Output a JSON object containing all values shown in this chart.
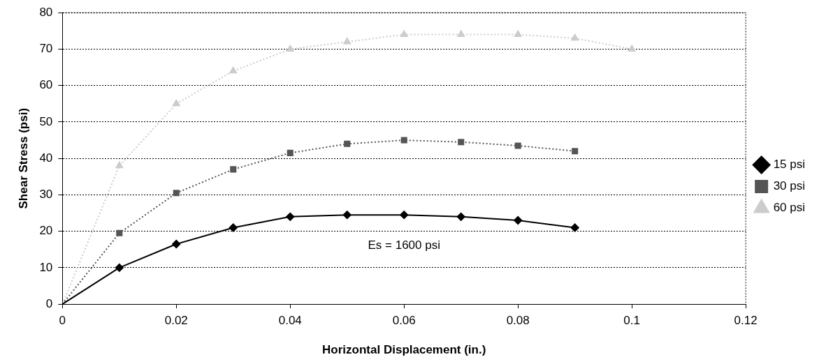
{
  "chart_data": {
    "type": "line",
    "xlabel": "Horizontal Displacement (in.)",
    "ylabel": "Shear Stress (psi)",
    "xlim": [
      0,
      0.12
    ],
    "xticks": [
      0,
      0.02,
      0.04,
      0.06,
      0.08,
      0.1,
      0.12
    ],
    "ylim": [
      0,
      80
    ],
    "yticks": [
      0,
      10,
      20,
      30,
      40,
      50,
      60,
      70,
      80
    ],
    "grid": "y",
    "legend": "right",
    "x": [
      0,
      0.01,
      0.02,
      0.03,
      0.04,
      0.05,
      0.06,
      0.07,
      0.08,
      0.09
    ],
    "series": [
      {
        "name": "15 psi",
        "color": "#000000",
        "marker": "diamond",
        "line_style": "solid",
        "values": [
          0,
          10,
          16.5,
          21,
          24,
          24.5,
          24.5,
          24,
          23,
          21
        ]
      },
      {
        "name": "30 psi",
        "color": "#555555",
        "marker": "square",
        "line_style": "dotted",
        "values": [
          0,
          19.5,
          30.5,
          37,
          41.5,
          44,
          45,
          44.5,
          43.5,
          42
        ]
      },
      {
        "name": "60 psi",
        "color": "#cccccc",
        "marker": "triangle",
        "line_style": "dotted",
        "x": [
          0,
          0.01,
          0.02,
          0.03,
          0.04,
          0.05,
          0.06,
          0.07,
          0.08,
          0.09,
          0.1
        ],
        "values": [
          0,
          38,
          55,
          64,
          70,
          72,
          74,
          74,
          74,
          73,
          70
        ]
      }
    ],
    "annotations": [
      "Es = 1600 psi"
    ]
  }
}
